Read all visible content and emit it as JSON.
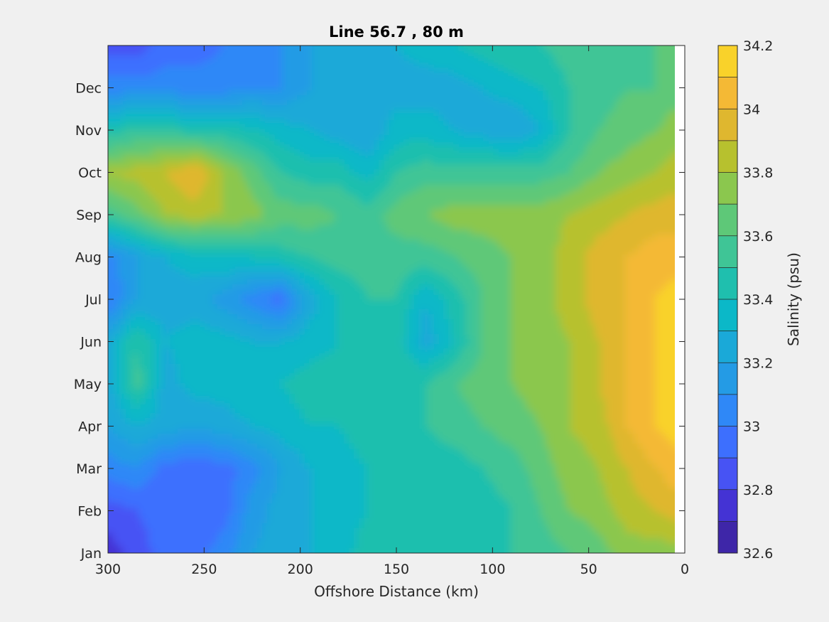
{
  "chart_data": {
    "type": "heatmap",
    "subtype": "filled-contour",
    "title": "Line 56.7 , 80 m",
    "xlabel": "Offshore Distance (km)",
    "ylabel": "",
    "xlim": [
      300,
      0
    ],
    "x_ticks": [
      300,
      250,
      200,
      150,
      100,
      50,
      0
    ],
    "x_tick_labels": [
      "300",
      "250",
      "200",
      "150",
      "100",
      "50",
      "0"
    ],
    "y_tick_labels": [
      "Jan",
      "Feb",
      "Mar",
      "Apr",
      "May",
      "Jun",
      "Jul",
      "Aug",
      "Sep",
      "Oct",
      "Nov",
      "Dec"
    ],
    "grid": false,
    "colorbar": {
      "label": "Salinity (psu)",
      "range": [
        32.6,
        34.2
      ],
      "tick_values": [
        32.6,
        32.8,
        33.0,
        33.2,
        33.4,
        33.6,
        33.8,
        34.0,
        34.2
      ],
      "tick_labels": [
        "32.6",
        "32.8",
        "33",
        "33.2",
        "33.4",
        "33.6",
        "33.8",
        "34",
        "34.2"
      ],
      "levels": [
        32.6,
        32.7,
        32.8,
        32.9,
        33.0,
        33.1,
        33.2,
        33.3,
        33.4,
        33.5,
        33.6,
        33.7,
        33.8,
        33.9,
        34.0,
        34.1,
        34.2
      ],
      "colors": [
        "#3e26a8",
        "#4433d4",
        "#4753f4",
        "#3d6ffe",
        "#2f88f7",
        "#249be5",
        "#1aa9d8",
        "#0bb8c8",
        "#1fbfae",
        "#3fc596",
        "#5ec878",
        "#8bc74e",
        "#b7c12e",
        "#dfb72f",
        "#f4b935",
        "#f9d22a"
      ]
    },
    "grid_x_km": [
      300,
      285,
      270,
      255,
      240,
      225,
      210,
      195,
      180,
      165,
      150,
      135,
      120,
      105,
      90,
      75,
      60,
      45,
      30,
      15,
      5
    ],
    "grid_y_month": [
      0,
      1,
      2,
      3,
      4,
      5,
      6,
      7,
      8,
      9,
      10,
      11,
      12
    ],
    "salinity_psu": [
      [
        32.75,
        32.85,
        32.95,
        32.95,
        33.05,
        33.2,
        33.25,
        33.3,
        33.35,
        33.45,
        33.45,
        33.45,
        33.45,
        33.45,
        33.5,
        33.55,
        33.6,
        33.65,
        33.75,
        33.75,
        33.75
      ],
      [
        32.85,
        32.9,
        32.95,
        32.95,
        32.95,
        33.15,
        33.25,
        33.3,
        33.35,
        33.4,
        33.45,
        33.45,
        33.45,
        33.45,
        33.5,
        33.6,
        33.7,
        33.75,
        33.85,
        33.9,
        33.95
      ],
      [
        33.05,
        33.1,
        32.95,
        32.95,
        32.95,
        33.05,
        33.2,
        33.3,
        33.35,
        33.4,
        33.45,
        33.45,
        33.45,
        33.5,
        33.55,
        33.65,
        33.75,
        33.8,
        33.9,
        34.0,
        34.05
      ],
      [
        33.2,
        33.3,
        33.25,
        33.2,
        33.25,
        33.3,
        33.35,
        33.4,
        33.4,
        33.45,
        33.45,
        33.5,
        33.55,
        33.6,
        33.65,
        33.7,
        33.8,
        33.85,
        34.0,
        34.1,
        34.15
      ],
      [
        33.25,
        33.55,
        33.25,
        33.35,
        33.35,
        33.4,
        33.4,
        33.45,
        33.45,
        33.45,
        33.45,
        33.5,
        33.6,
        33.65,
        33.7,
        33.75,
        33.8,
        33.9,
        34.0,
        34.1,
        34.15
      ],
      [
        33.25,
        33.5,
        33.3,
        33.35,
        33.35,
        33.3,
        33.3,
        33.35,
        33.4,
        33.45,
        33.45,
        33.25,
        33.4,
        33.6,
        33.7,
        33.75,
        33.8,
        33.9,
        34.0,
        34.1,
        34.15
      ],
      [
        33.0,
        33.2,
        33.25,
        33.25,
        33.15,
        33.05,
        32.95,
        33.25,
        33.4,
        33.5,
        33.5,
        33.3,
        33.45,
        33.6,
        33.7,
        33.75,
        33.85,
        33.95,
        34.0,
        34.1,
        34.15
      ],
      [
        33.05,
        33.2,
        33.3,
        33.35,
        33.4,
        33.4,
        33.45,
        33.5,
        33.55,
        33.55,
        33.55,
        33.55,
        33.6,
        33.65,
        33.7,
        33.75,
        33.85,
        33.95,
        34.0,
        34.05,
        34.05
      ],
      [
        33.55,
        33.65,
        33.8,
        33.85,
        33.8,
        33.75,
        33.65,
        33.65,
        33.6,
        33.55,
        33.65,
        33.7,
        33.75,
        33.75,
        33.75,
        33.75,
        33.8,
        33.85,
        33.9,
        33.95,
        33.95
      ],
      [
        33.8,
        33.85,
        33.9,
        34.0,
        33.8,
        33.65,
        33.5,
        33.45,
        33.45,
        33.35,
        33.5,
        33.55,
        33.55,
        33.55,
        33.55,
        33.55,
        33.6,
        33.7,
        33.75,
        33.8,
        33.85
      ],
      [
        33.45,
        33.5,
        33.5,
        33.45,
        33.45,
        33.4,
        33.35,
        33.3,
        33.25,
        33.2,
        33.35,
        33.35,
        33.3,
        33.25,
        33.2,
        33.3,
        33.5,
        33.6,
        33.65,
        33.7,
        33.75
      ],
      [
        33.05,
        33.05,
        33.05,
        33.05,
        33.05,
        33.1,
        33.1,
        33.2,
        33.25,
        33.25,
        33.25,
        33.25,
        33.25,
        33.3,
        33.35,
        33.4,
        33.5,
        33.55,
        33.6,
        33.6,
        33.65
      ],
      [
        32.85,
        32.85,
        32.95,
        32.95,
        33.0,
        33.05,
        33.1,
        33.2,
        33.25,
        33.3,
        33.3,
        33.35,
        33.4,
        33.45,
        33.5,
        33.5,
        33.55,
        33.6,
        33.6,
        33.6,
        33.65
      ]
    ]
  }
}
